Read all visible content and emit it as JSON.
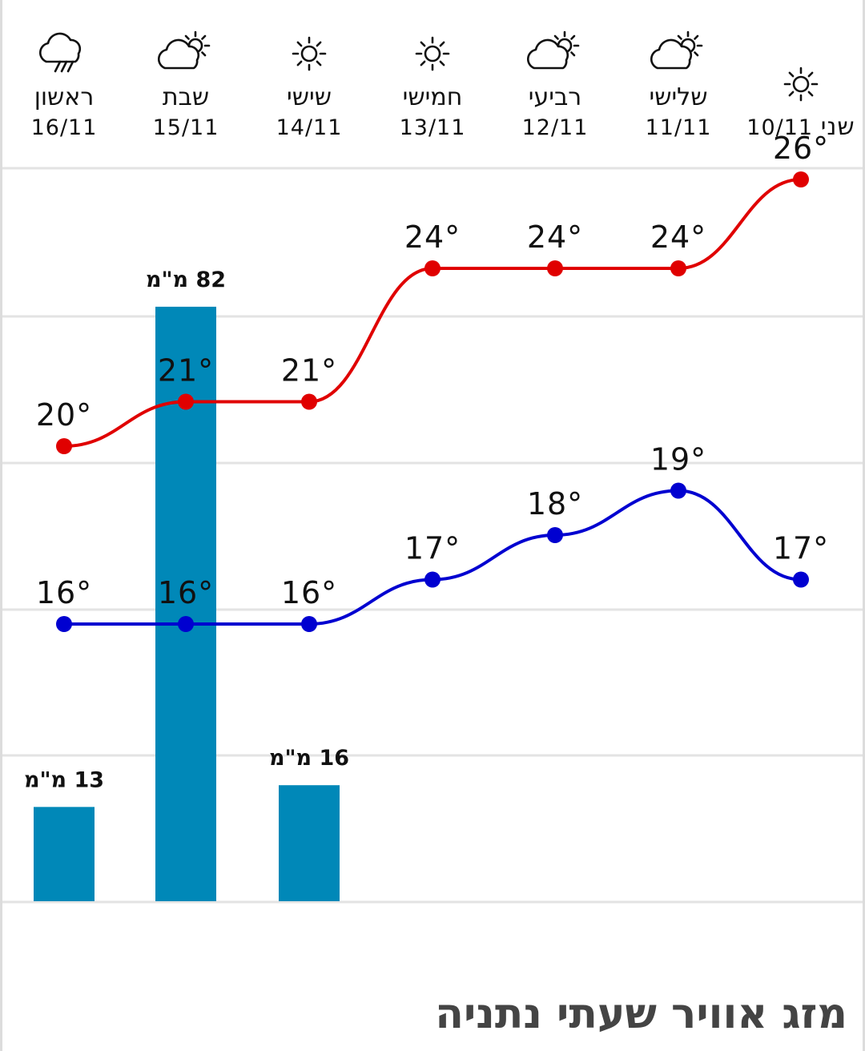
{
  "page": {
    "title": "מזג אוויר שעתי נתניה"
  },
  "chart_data": {
    "type": "line",
    "categories": [
      {
        "day": "שני",
        "date": "10/11",
        "icon": "sun-icon"
      },
      {
        "day": "שלישי",
        "date": "11/11",
        "icon": "partly-cloudy-icon"
      },
      {
        "day": "רביעי",
        "date": "12/11",
        "icon": "partly-cloudy-icon"
      },
      {
        "day": "חמישי",
        "date": "13/11",
        "icon": "sun-icon"
      },
      {
        "day": "שישי",
        "date": "14/11",
        "icon": "sun-icon"
      },
      {
        "day": "שבת",
        "date": "15/11",
        "icon": "partly-cloudy-icon"
      },
      {
        "day": "ראשון",
        "date": "16/11",
        "icon": "rain-cloud-icon"
      }
    ],
    "series": [
      {
        "values": [
          26,
          24,
          24,
          24,
          21,
          21,
          20
        ],
        "color": "#e00000"
      },
      {
        "values": [
          17,
          19,
          18,
          17,
          16,
          16,
          16
        ],
        "color": "#0000d0"
      }
    ],
    "precipitation": [
      {
        "day": "שישי",
        "value": 16,
        "label": "16 מ\"מ"
      },
      {
        "day": "שבת",
        "value": 82,
        "label": "82 מ\"מ"
      },
      {
        "day": "ראשון",
        "value": 13,
        "label": "13 מ\"מ"
      }
    ],
    "temp_unit": "°",
    "bar_color": "#0088b8",
    "grid": true
  }
}
